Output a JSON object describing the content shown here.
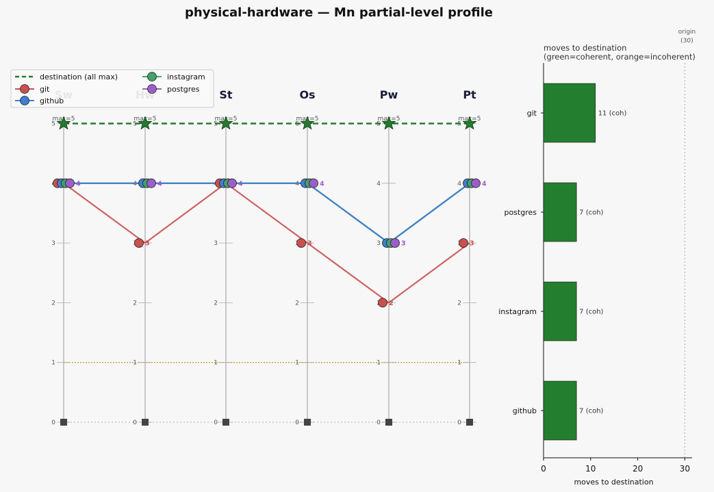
{
  "title": "physical-hardware — Mn partial-level profile",
  "colors": {
    "git": "#c9514f",
    "github": "#3f7fcf",
    "instagram": "#45a06a",
    "postgres": "#9b5fc9",
    "destination": "#237a30",
    "baseline": "#c8a040",
    "bar_coherent": "#237f2f",
    "axis_line": "#999999",
    "text_dark": "#1a1a3a"
  },
  "legend": {
    "destination": "destination (all max)",
    "git": "git",
    "github": "github",
    "instagram": "instagram",
    "postgres": "postgres"
  },
  "chart_data": [
    {
      "type": "line",
      "subtype": "parallel-coordinates",
      "axes": [
        "Sw",
        "Hw",
        "St",
        "Os",
        "Pw",
        "Pt"
      ],
      "max_label": "max=5",
      "ylim": [
        0,
        5
      ],
      "ticks": [
        0,
        1,
        2,
        3,
        4,
        5
      ],
      "destination_series": {
        "name": "destination (all max)",
        "values": [
          5,
          5,
          5,
          5,
          5,
          5
        ]
      },
      "series": [
        {
          "name": "git",
          "values": [
            4,
            3,
            4,
            3,
            2,
            3
          ]
        },
        {
          "name": "github",
          "values": [
            4,
            4,
            4,
            4,
            3,
            4
          ]
        },
        {
          "name": "instagram",
          "values": [
            4,
            4,
            4,
            4,
            3,
            4
          ]
        },
        {
          "name": "postgres",
          "values": [
            4,
            4,
            4,
            4,
            3,
            4
          ]
        }
      ],
      "legend_position": "top-left"
    },
    {
      "type": "bar",
      "orientation": "horizontal",
      "title": "moves to destination\n(green=coherent, orange=incoherent)",
      "title_lines": [
        "moves to destination",
        "(green=coherent, orange=incoherent)"
      ],
      "categories": [
        "git",
        "postgres",
        "instagram",
        "github"
      ],
      "values": [
        11,
        7,
        7,
        7
      ],
      "value_labels": [
        "11  (coh)",
        "7  (coh)",
        "7  (coh)",
        "7  (coh)"
      ],
      "xlabel": "moves to destination",
      "xlim": [
        0,
        32
      ],
      "xticks": [
        0,
        10,
        20,
        30
      ],
      "origin_marker": {
        "value": 30,
        "label_line1": "origin",
        "label_line2": "(30)"
      }
    }
  ]
}
